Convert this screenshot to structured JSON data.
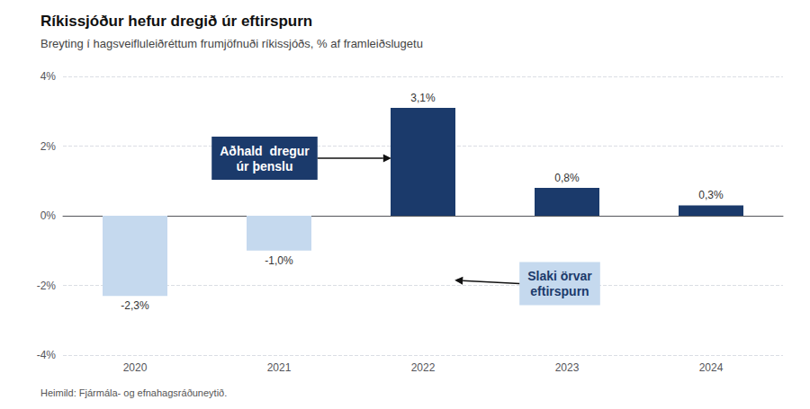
{
  "chart_data": {
    "type": "bar",
    "title": "Ríkissjóður hefur dregið úr eftirspurn",
    "subtitle": "Breyting í hagsveifluleiðréttum frumjöfnuði ríkissjóðs, % af framleiðslugetu",
    "source": "Heimild: Fjármála- og efnahagsráðuneytið.",
    "categories": [
      "2020",
      "2021",
      "2022",
      "2023",
      "2024"
    ],
    "values": [
      -2.3,
      -1.0,
      3.1,
      0.8,
      0.3
    ],
    "value_labels": [
      "-2,3%",
      "-1,0%",
      "3,1%",
      "0,8%",
      "0,3%"
    ],
    "data_labels": true,
    "colors": [
      "#c5d9ee",
      "#c5d9ee",
      "#1b3a6b",
      "#1b3a6b",
      "#1b3a6b"
    ],
    "ylim": [
      -4,
      4
    ],
    "yticks": [
      {
        "value": -4,
        "label": "-4%"
      },
      {
        "value": -2,
        "label": "-2%"
      },
      {
        "value": 0,
        "label": "0%"
      },
      {
        "value": 2,
        "label": "2%"
      },
      {
        "value": 4,
        "label": "4%"
      }
    ],
    "grid": true,
    "annotations": [
      {
        "text": "Aðhald  dregur\núr þenslu",
        "color": "#1b3a6b",
        "text_color": "#ffffff"
      },
      {
        "text": "Slaki örvar\neftirspurn",
        "color": "#c5d9ee",
        "text_color": "#1b3a6b"
      }
    ]
  }
}
